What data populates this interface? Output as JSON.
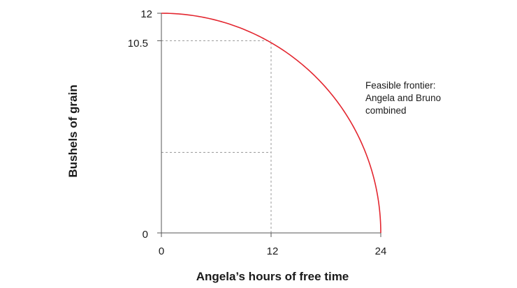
{
  "chart_data": {
    "type": "line",
    "xlabel": "Angela’s hours of free time",
    "ylabel": "Bushels of grain",
    "xlim": [
      0,
      24
    ],
    "ylim": [
      0,
      12
    ],
    "x_ticks": [
      "0",
      "12",
      "24"
    ],
    "y_ticks": [
      "0",
      "10.5",
      "12"
    ],
    "grid": false,
    "series": [
      {
        "shape": "quarter-ellipse frontier",
        "color": "#e3262f",
        "points": [
          {
            "x": 0,
            "y": 12
          },
          {
            "x": 12,
            "y": 10.5
          },
          {
            "x": 24,
            "y": 0
          }
        ]
      }
    ],
    "annotation": {
      "lines": [
        "Feasible frontier:",
        "Angela and Bruno",
        "combined"
      ]
    },
    "reference_lines": [
      {
        "kind": "horizontal",
        "y": 10.5,
        "x_from": 0,
        "x_to": 12
      },
      {
        "kind": "horizontal",
        "y": 4.4,
        "x_from": 0,
        "x_to": 12
      },
      {
        "kind": "vertical",
        "x": 12,
        "y_from": 0,
        "y_to": 10.5
      }
    ],
    "colors": {
      "frontier": "#e3262f",
      "axis": "#555555",
      "guide": "#9a9a9a",
      "text": "#1a1a1a"
    }
  }
}
